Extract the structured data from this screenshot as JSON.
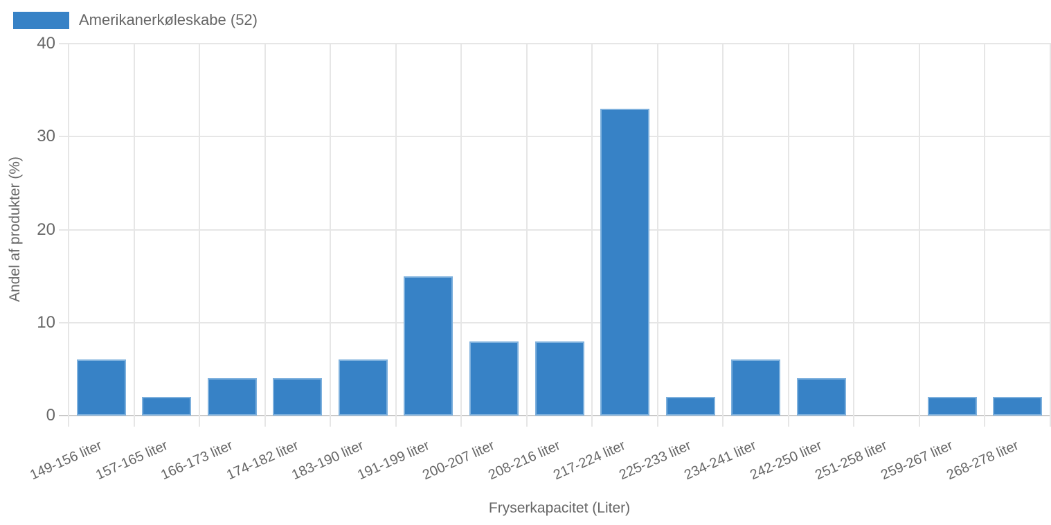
{
  "legend": {
    "items": [
      {
        "label": "Amerikanerkøleskabe (52)",
        "color": "#3782c6"
      }
    ]
  },
  "chart_data": {
    "type": "bar",
    "title": "",
    "categories": [
      "149-156 liter",
      "157-165 liter",
      "166-173 liter",
      "174-182 liter",
      "183-190 liter",
      "191-199 liter",
      "200-207 liter",
      "208-216 liter",
      "217-224 liter",
      "225-233 liter",
      "234-241 liter",
      "242-250 liter",
      "251-258 liter",
      "259-267 liter",
      "268-278 liter"
    ],
    "series": [
      {
        "name": "Amerikanerkøleskabe (52)",
        "values": [
          6,
          2,
          4,
          4,
          6,
          15,
          8,
          8,
          33,
          2,
          6,
          4,
          0,
          2,
          2
        ]
      }
    ],
    "xlabel": "Fryserkapacitet (Liter)",
    "ylabel": "Andel af produkter (%)",
    "ylim": [
      0,
      40
    ],
    "yticks": [
      0,
      10,
      20,
      30,
      40
    ],
    "grid": true,
    "legend_position": "top-left",
    "colors": {
      "bar_fill": "#3782c6",
      "bar_border": "#7db0dd",
      "grid_line": "#e6e6e6",
      "axis_line": "#c9c9c9",
      "text": "#666666"
    }
  }
}
